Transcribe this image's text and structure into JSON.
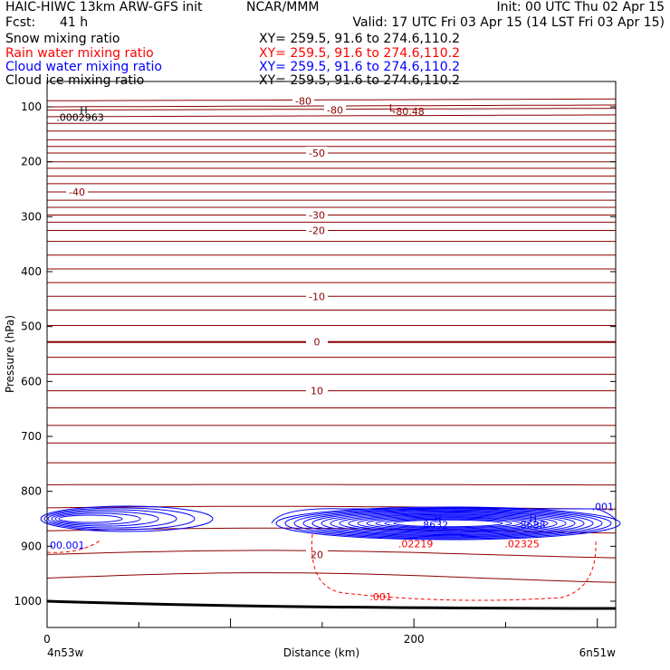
{
  "header": {
    "model_line": "HAIC-HIWC 13km ARW-GFS init",
    "center": "NCAR/MMM",
    "init": "Init: 00 UTC Thu 02 Apr 15",
    "fcst_label": "Fcst:",
    "fcst_value": "41 h",
    "valid": "Valid: 17 UTC Fri 03 Apr 15 (14 LST Fri 03 Apr 15)"
  },
  "fields": [
    {
      "name": "Snow mixing ratio",
      "xy": "XY= 259.5, 91.6 to 274.6,110.2",
      "color": "#000000"
    },
    {
      "name": "Rain water mixing ratio",
      "xy": "XY= 259.5, 91.6 to 274.6,110.2",
      "color": "#ff0000"
    },
    {
      "name": "Cloud water mixing ratio",
      "xy": "XY= 259.5, 91.6 to 274.6,110.2",
      "color": "#0000ff"
    },
    {
      "name": "Cloud ice mixing ratio",
      "xy": "XY= 259.5, 91.6 to 274.6,110.2",
      "color": "#000000"
    }
  ],
  "chart_data": {
    "type": "line",
    "title": "",
    "xlabel": "Distance (km)",
    "ylabel": "Pressure (hPa)",
    "xlim": [
      0,
      310
    ],
    "ylim": [
      1000,
      80
    ],
    "x_ticks": [
      0,
      200
    ],
    "y_ticks": [
      100,
      200,
      300,
      400,
      500,
      600,
      700,
      800,
      900,
      1000
    ],
    "left_endpoint": "4n53w",
    "right_endpoint": "6n51w",
    "temperature_contours": {
      "color": "#8b0000",
      "levels": [
        {
          "p": 89,
          "label": "-80"
        },
        {
          "p": 100,
          "label": ""
        },
        {
          "p": 106,
          "label": "-80"
        },
        {
          "p": 118,
          "label": ""
        },
        {
          "p": 130,
          "label": ""
        },
        {
          "p": 144,
          "label": ""
        },
        {
          "p": 160,
          "label": ""
        },
        {
          "p": 172,
          "label": ""
        },
        {
          "p": 184,
          "label": "-50"
        },
        {
          "p": 200,
          "label": ""
        },
        {
          "p": 212,
          "label": ""
        },
        {
          "p": 226,
          "label": ""
        },
        {
          "p": 240,
          "label": ""
        },
        {
          "p": 255,
          "label": "-40"
        },
        {
          "p": 270,
          "label": ""
        },
        {
          "p": 283,
          "label": ""
        },
        {
          "p": 297,
          "label": "-30"
        },
        {
          "p": 310,
          "label": ""
        },
        {
          "p": 325,
          "label": "-20"
        },
        {
          "p": 345,
          "label": ""
        },
        {
          "p": 370,
          "label": ""
        },
        {
          "p": 395,
          "label": ""
        },
        {
          "p": 420,
          "label": ""
        },
        {
          "p": 445,
          "label": "-10"
        },
        {
          "p": 470,
          "label": ""
        },
        {
          "p": 498,
          "label": ""
        },
        {
          "p": 528,
          "label": "0"
        },
        {
          "p": 556,
          "label": ""
        },
        {
          "p": 587,
          "label": ""
        },
        {
          "p": 617,
          "label": "10"
        },
        {
          "p": 648,
          "label": ""
        },
        {
          "p": 680,
          "label": ""
        },
        {
          "p": 712,
          "label": ""
        },
        {
          "p": 748,
          "label": ""
        },
        {
          "p": 788,
          "label": ""
        },
        {
          "p": 830,
          "label": ""
        },
        {
          "p": 872,
          "label": ""
        },
        {
          "p": 915,
          "label": "20"
        },
        {
          "p": 958,
          "label": ""
        }
      ],
      "extra_labels": [
        {
          "text": "L",
          "x": 188,
          "p": 102
        },
        {
          "text": "-80.48",
          "x": 197,
          "p": 108
        }
      ]
    },
    "cloud_water": {
      "color": "#0000ff",
      "labels": [
        {
          "text": ".001",
          "x": 303,
          "p": 828
        },
        {
          "text": "H",
          "x": 213,
          "p": 850
        },
        {
          "text": ".8632",
          "x": 211,
          "p": 861
        },
        {
          "text": "H",
          "x": 265,
          "p": 850
        },
        {
          "text": ".8688",
          "x": 264,
          "p": 861
        },
        {
          "text": "00.001",
          "x": 11,
          "p": 898
        }
      ]
    },
    "rain_water": {
      "color": "#ff0000",
      "labels": [
        {
          "text": ".02219",
          "x": 201,
          "p": 895
        },
        {
          "text": ".02325",
          "x": 259,
          "p": 895
        },
        {
          "text": ".001",
          "x": 182,
          "p": 992
        }
      ]
    },
    "snow": {
      "color": "#000000",
      "labels": [
        {
          "text": "H",
          "x": 20,
          "p": 106
        },
        {
          "text": ".0002963",
          "x": 18,
          "p": 119
        }
      ]
    }
  }
}
